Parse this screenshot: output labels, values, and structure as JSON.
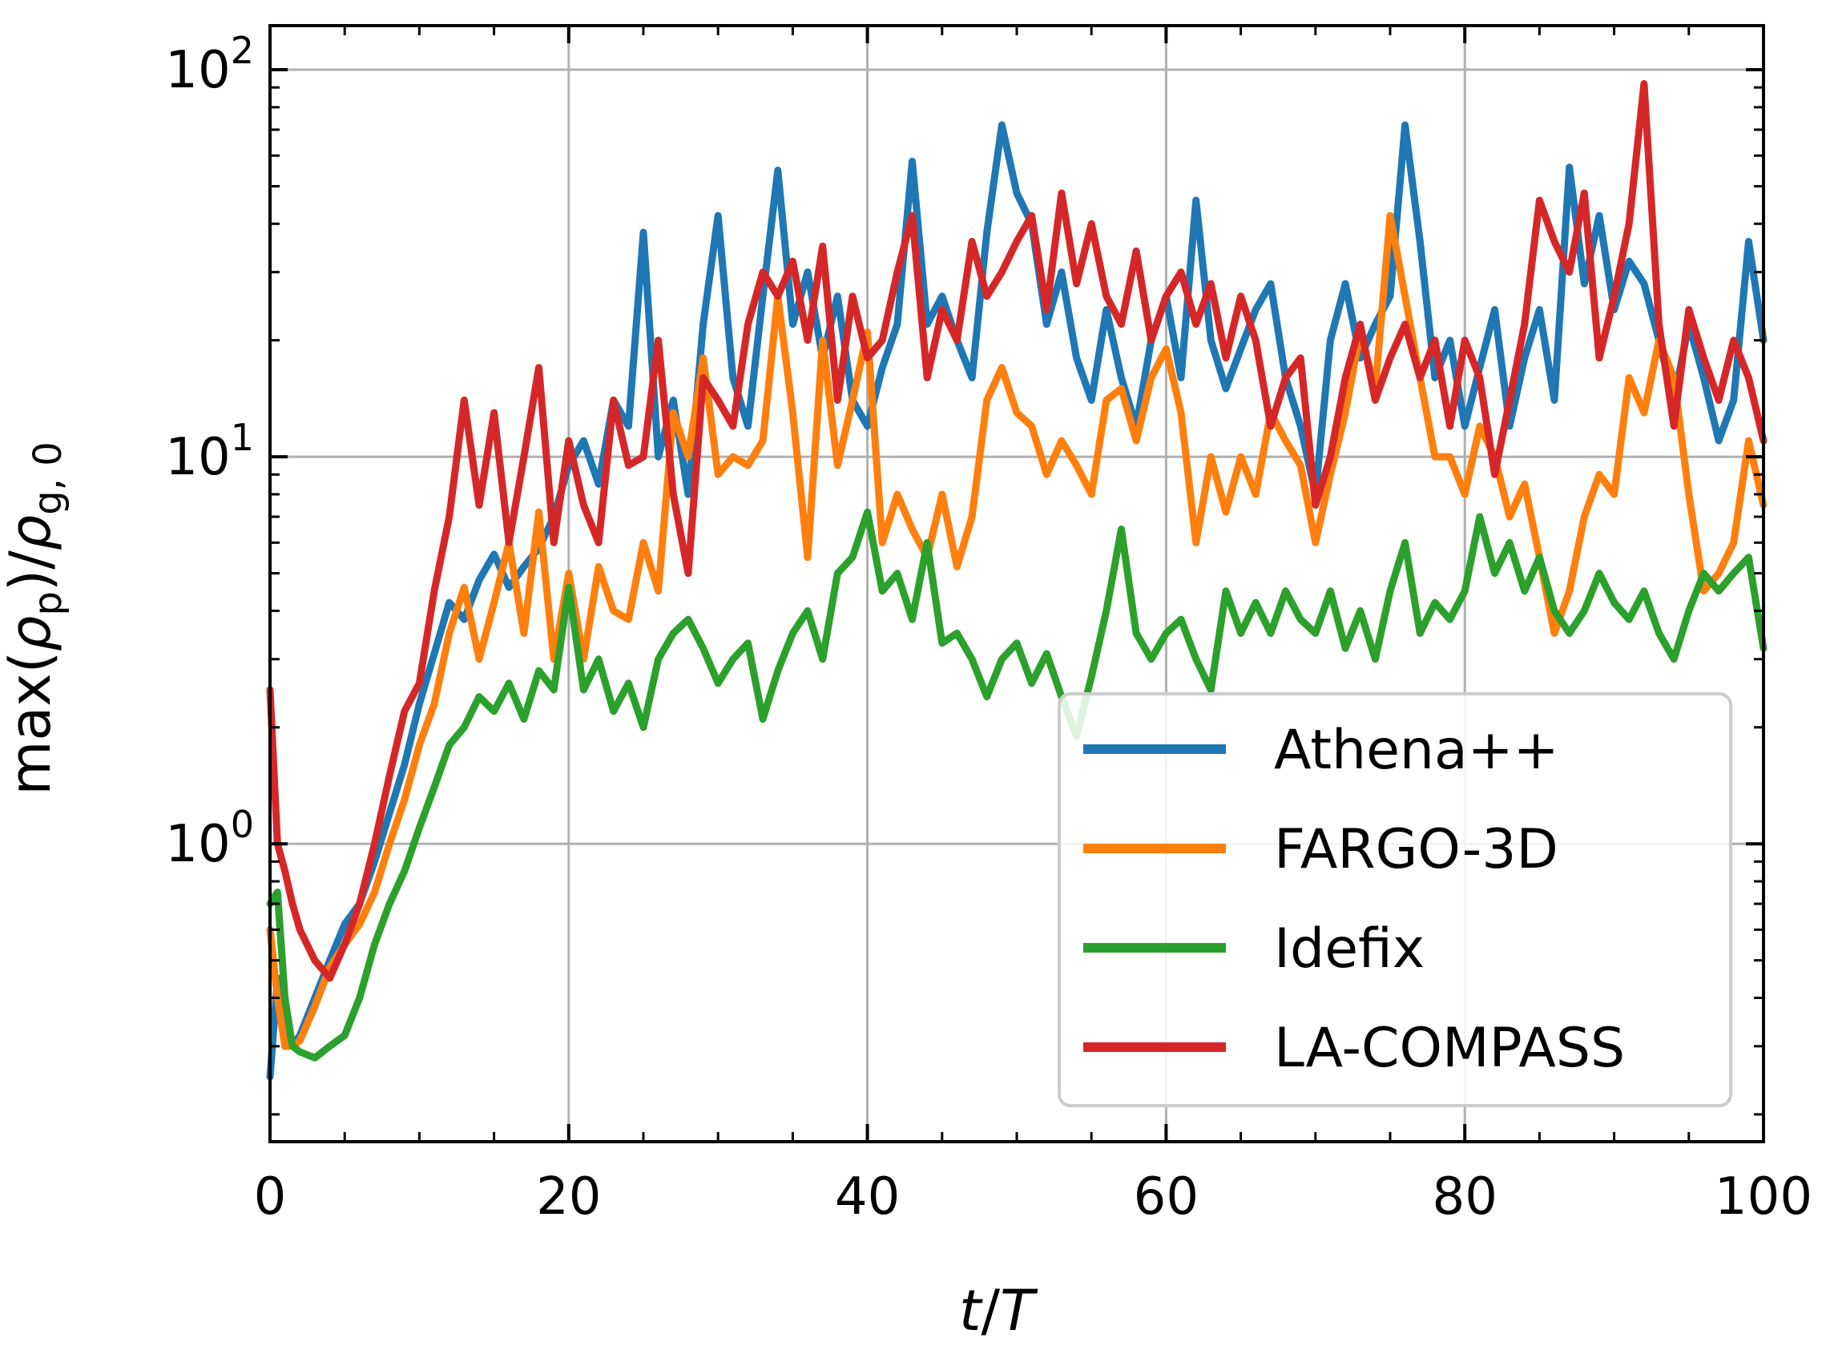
{
  "chart_data": {
    "type": "line",
    "xlabel": "t/T",
    "ylabel": "max(ρp)/ρg,0",
    "ylabel_parts": {
      "pre": "max(",
      "rho1": "ρ",
      "sub1": "p",
      "mid": ")/",
      "rho2": "ρ",
      "sub2": "g, 0"
    },
    "xlabel_parts": {
      "t": "t",
      "slash": "/",
      "T": "T"
    },
    "xlim": [
      0,
      100
    ],
    "ylim": [
      0.17,
      130
    ],
    "yscale": "log",
    "grid": true,
    "legend_position": "lower-right",
    "x_ticks": [
      "0",
      "20",
      "40",
      "60",
      "80",
      "100"
    ],
    "y_ticks": [
      {
        "base": "10",
        "exp": "0",
        "value": 1
      },
      {
        "base": "10",
        "exp": "1",
        "value": 10
      },
      {
        "base": "10",
        "exp": "2",
        "value": 100
      }
    ],
    "series": [
      {
        "name": "Athena++",
        "color": "#1f77b4",
        "x": [
          0,
          0.5,
          1,
          1.5,
          2,
          3,
          4,
          5,
          6,
          7,
          8,
          9,
          10,
          11,
          12,
          13,
          14,
          15,
          16,
          17,
          18,
          19,
          20,
          21,
          22,
          23,
          24,
          25,
          26,
          27,
          28,
          29,
          30,
          31,
          32,
          33,
          34,
          35,
          36,
          37,
          38,
          39,
          40,
          41,
          42,
          43,
          44,
          45,
          46,
          47,
          48,
          49,
          50,
          51,
          52,
          53,
          54,
          55,
          56,
          57,
          58,
          59,
          60,
          61,
          62,
          63,
          64,
          65,
          66,
          67,
          68,
          69,
          70,
          71,
          72,
          73,
          74,
          75,
          76,
          77,
          78,
          79,
          80,
          81,
          82,
          83,
          84,
          85,
          86,
          87,
          88,
          89,
          90,
          91,
          92,
          93,
          94,
          95,
          96,
          97,
          98,
          99,
          100
        ],
        "y": [
          0.25,
          0.45,
          0.3,
          0.3,
          0.32,
          0.4,
          0.5,
          0.62,
          0.7,
          0.9,
          1.2,
          1.6,
          2.3,
          3.1,
          4.2,
          3.8,
          4.8,
          5.6,
          4.6,
          5.2,
          5.8,
          7.0,
          9.5,
          11.0,
          8.5,
          14.0,
          12.0,
          38.0,
          10.0,
          14.0,
          8.0,
          22.0,
          42.0,
          16.0,
          12.0,
          26.0,
          55.0,
          22.0,
          30.0,
          18.0,
          26.0,
          14.0,
          12.0,
          17.0,
          22.0,
          58.0,
          22.0,
          26.0,
          20.0,
          16.0,
          38.0,
          72.0,
          48.0,
          40.0,
          22.0,
          30.0,
          18.0,
          14.0,
          24.0,
          16.0,
          12.0,
          20.0,
          26.0,
          16.0,
          46.0,
          20.0,
          15.0,
          19.0,
          24.0,
          28.0,
          16.0,
          12.0,
          8.0,
          20.0,
          28.0,
          18.0,
          22.0,
          26.0,
          72.0,
          36.0,
          16.0,
          20.0,
          12.0,
          17.0,
          24.0,
          12.0,
          18.0,
          24.0,
          14.0,
          56.0,
          28.0,
          42.0,
          24.0,
          32.0,
          28.0,
          20.0,
          14.0,
          22.0,
          16.0,
          11.0,
          14.0,
          36.0,
          20.0
        ]
      },
      {
        "name": "FARGO-3D",
        "color": "#ff7f0e",
        "x": [
          0,
          0.5,
          1,
          1.5,
          2,
          3,
          4,
          5,
          6,
          7,
          8,
          9,
          10,
          11,
          12,
          13,
          14,
          15,
          16,
          17,
          18,
          19,
          20,
          21,
          22,
          23,
          24,
          25,
          26,
          27,
          28,
          29,
          30,
          31,
          32,
          33,
          34,
          35,
          36,
          37,
          38,
          39,
          40,
          41,
          42,
          43,
          44,
          45,
          46,
          47,
          48,
          49,
          50,
          51,
          52,
          53,
          54,
          55,
          56,
          57,
          58,
          59,
          60,
          61,
          62,
          63,
          64,
          65,
          66,
          67,
          68,
          69,
          70,
          71,
          72,
          73,
          74,
          75,
          76,
          77,
          78,
          79,
          80,
          81,
          82,
          83,
          84,
          85,
          86,
          87,
          88,
          89,
          90,
          91,
          92,
          93,
          94,
          95,
          96,
          97,
          98,
          99,
          100
        ],
        "y": [
          0.6,
          0.4,
          0.3,
          0.3,
          0.31,
          0.38,
          0.48,
          0.55,
          0.62,
          0.75,
          1.0,
          1.3,
          1.8,
          2.3,
          3.5,
          4.6,
          3.0,
          4.2,
          6.0,
          3.5,
          7.2,
          3.0,
          5.0,
          3.0,
          5.2,
          4.0,
          3.8,
          6.0,
          4.5,
          13.0,
          10.0,
          18.0,
          9.0,
          10.0,
          9.5,
          11.0,
          26.0,
          13.0,
          5.5,
          20.0,
          9.5,
          14.0,
          21.0,
          6.0,
          8.0,
          6.5,
          5.5,
          8.0,
          5.2,
          7.0,
          14.0,
          17.0,
          13.0,
          12.0,
          9.0,
          11.0,
          9.5,
          8.0,
          14.0,
          15.0,
          11.0,
          16.0,
          19.0,
          13.0,
          6.0,
          10.0,
          7.2,
          10.0,
          8.0,
          13.0,
          11.0,
          9.5,
          6.0,
          9.0,
          13.0,
          21.0,
          15.0,
          42.0,
          26.0,
          16.0,
          10.0,
          10.0,
          8.0,
          12.0,
          10.0,
          7.0,
          8.5,
          5.5,
          3.5,
          4.5,
          7.0,
          9.0,
          8.0,
          16.0,
          13.0,
          20.0,
          16.0,
          8.0,
          4.5,
          5.0,
          6.0,
          11.0,
          7.5
        ]
      },
      {
        "name": "Idefix",
        "color": "#2ca02c",
        "x": [
          0,
          0.5,
          1,
          1.5,
          2,
          3,
          4,
          5,
          6,
          7,
          8,
          9,
          10,
          11,
          12,
          13,
          14,
          15,
          16,
          17,
          18,
          19,
          20,
          21,
          22,
          23,
          24,
          25,
          26,
          27,
          28,
          29,
          30,
          31,
          32,
          33,
          34,
          35,
          36,
          37,
          38,
          39,
          40,
          41,
          42,
          43,
          44,
          45,
          46,
          47,
          48,
          49,
          50,
          51,
          52,
          53,
          54,
          55,
          56,
          57,
          58,
          59,
          60,
          61,
          62,
          63,
          64,
          65,
          66,
          67,
          68,
          69,
          70,
          71,
          72,
          73,
          74,
          75,
          76,
          77,
          78,
          79,
          80,
          81,
          82,
          83,
          84,
          85,
          86,
          87,
          88,
          89,
          90,
          91,
          92,
          93,
          94,
          95,
          96,
          97,
          98,
          99,
          100
        ],
        "y": [
          0.7,
          0.75,
          0.4,
          0.3,
          0.29,
          0.28,
          0.3,
          0.32,
          0.4,
          0.55,
          0.7,
          0.85,
          1.1,
          1.4,
          1.8,
          2.0,
          2.4,
          2.2,
          2.6,
          2.1,
          2.8,
          2.5,
          4.6,
          2.5,
          3.0,
          2.2,
          2.6,
          2.0,
          3.0,
          3.5,
          3.8,
          3.2,
          2.6,
          3.0,
          3.3,
          2.1,
          2.8,
          3.5,
          4.0,
          3.0,
          5.0,
          5.5,
          7.2,
          4.5,
          5.0,
          3.8,
          6.0,
          3.3,
          3.5,
          3.0,
          2.4,
          3.0,
          3.3,
          2.6,
          3.1,
          2.4,
          1.9,
          2.7,
          4.0,
          6.5,
          3.5,
          3.0,
          3.5,
          3.8,
          3.0,
          2.5,
          4.5,
          3.5,
          4.2,
          3.5,
          4.5,
          3.8,
          3.5,
          4.5,
          3.2,
          4.0,
          3.0,
          4.5,
          6.0,
          3.5,
          4.2,
          3.8,
          4.5,
          7.0,
          5.0,
          6.0,
          4.5,
          5.5,
          4.0,
          3.5,
          4.0,
          5.0,
          4.2,
          3.8,
          4.5,
          3.5,
          3.0,
          4.0,
          5.0,
          4.5,
          5.0,
          5.5,
          3.2
        ]
      },
      {
        "name": "LA-COMPASS",
        "color": "#d62728",
        "x": [
          0,
          0.5,
          1,
          1.5,
          2,
          3,
          4,
          5,
          6,
          7,
          8,
          9,
          10,
          11,
          12,
          13,
          14,
          15,
          16,
          17,
          18,
          19,
          20,
          21,
          22,
          23,
          24,
          25,
          26,
          27,
          28,
          29,
          30,
          31,
          32,
          33,
          34,
          35,
          36,
          37,
          38,
          39,
          40,
          41,
          42,
          43,
          44,
          45,
          46,
          47,
          48,
          49,
          50,
          51,
          52,
          53,
          54,
          55,
          56,
          57,
          58,
          59,
          60,
          61,
          62,
          63,
          64,
          65,
          66,
          67,
          68,
          69,
          70,
          71,
          72,
          73,
          74,
          75,
          76,
          77,
          78,
          79,
          80,
          81,
          82,
          83,
          84,
          85,
          86,
          87,
          88,
          89,
          90,
          91,
          92,
          93,
          94,
          95,
          96,
          97,
          98,
          99,
          100
        ],
        "y": [
          2.5,
          1.0,
          0.85,
          0.7,
          0.6,
          0.5,
          0.45,
          0.55,
          0.7,
          1.0,
          1.5,
          2.2,
          2.6,
          4.5,
          7.0,
          14.0,
          7.5,
          13.0,
          6.0,
          10.0,
          17.0,
          6.0,
          11.0,
          7.5,
          6.0,
          14.0,
          9.5,
          10.0,
          20.0,
          8.0,
          5.0,
          16.0,
          14.0,
          12.0,
          22.0,
          30.0,
          26.0,
          32.0,
          20.0,
          35.0,
          14.0,
          26.0,
          18.0,
          20.0,
          30.0,
          42.0,
          16.0,
          24.0,
          20.0,
          36.0,
          26.0,
          30.0,
          36.0,
          42.0,
          24.0,
          48.0,
          28.0,
          40.0,
          26.0,
          22.0,
          34.0,
          20.0,
          26.0,
          30.0,
          22.0,
          28.0,
          18.0,
          26.0,
          20.0,
          12.0,
          16.0,
          18.0,
          7.5,
          10.0,
          16.0,
          22.0,
          14.0,
          18.0,
          22.0,
          16.0,
          20.0,
          12.0,
          20.0,
          16.0,
          9.0,
          14.0,
          22.0,
          46.0,
          36.0,
          30.0,
          48.0,
          18.0,
          26.0,
          40.0,
          92.0,
          22.0,
          12.0,
          24.0,
          18.0,
          14.0,
          20.0,
          16.0,
          11.0
        ]
      }
    ]
  }
}
